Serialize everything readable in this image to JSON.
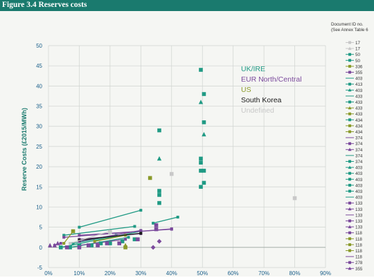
{
  "page": {
    "figure_title": "Figure 3.4 Reserves costs"
  },
  "colors": {
    "header_bg": "#1a7a6e",
    "uk_ire": "#1f9a84",
    "eur": "#7b4a9c",
    "us": "#8a9a2a",
    "south_korea": "#1a1a1a",
    "undefined": "#c8c8c8"
  },
  "chart_data": {
    "type": "scatter",
    "title": "",
    "xlabel": "",
    "ylabel": "Reserve Costs (£2015/MWh)",
    "xlim": [
      0,
      0.9
    ],
    "ylim": [
      -5,
      50
    ],
    "x_ticks": [
      "0%",
      "10%",
      "20%",
      "30%",
      "40%",
      "50%",
      "60%",
      "70%",
      "80%",
      "90%"
    ],
    "y_ticks": [
      "-5",
      "0",
      "5",
      "10",
      "15",
      "20",
      "25",
      "30",
      "35",
      "40",
      "45",
      "50"
    ],
    "grid": true,
    "category_labels": [
      {
        "name": "UK/IRE",
        "color": "#1f9a84"
      },
      {
        "name": "EUR North/Central",
        "color": "#7b4a9c"
      },
      {
        "name": "US",
        "color": "#8a9a2a"
      },
      {
        "name": "South Korea",
        "color": "#1a1a1a"
      },
      {
        "name": "Undefined",
        "color": "#c8c8c8"
      }
    ],
    "legend_title": "Document ID no.\n(See Annex Table 6",
    "legend_ids": [
      "17",
      "17",
      "50",
      "50",
      "336",
      "355",
      "403",
      "413",
      "403",
      "433",
      "433",
      "433",
      "433",
      "434",
      "434",
      "434",
      "374",
      "374",
      "374",
      "374",
      "374",
      "403",
      "403",
      "403",
      "403",
      "403",
      "403",
      "133",
      "133",
      "133",
      "133",
      "133",
      "118",
      "118",
      "118",
      "118",
      "118",
      "278",
      "355"
    ],
    "series": [
      {
        "group": "uk",
        "style": "line",
        "points": [
          [
            0.1,
            5
          ],
          [
            0.3,
            9.2
          ]
        ]
      },
      {
        "group": "uk",
        "style": "line",
        "points": [
          [
            0.05,
            3
          ],
          [
            0.28,
            5.2
          ]
        ]
      },
      {
        "group": "uk",
        "style": "line",
        "points": [
          [
            0.34,
            6
          ],
          [
            0.42,
            7.5
          ]
        ]
      },
      {
        "group": "uk",
        "style": "line",
        "points": [
          [
            0.04,
            0
          ],
          [
            0.3,
            4
          ]
        ]
      },
      {
        "group": "uk",
        "style": "line",
        "points": [
          [
            0.08,
            1
          ],
          [
            0.22,
            3
          ]
        ]
      },
      {
        "group": "uk",
        "style": "line",
        "points": [
          [
            0.07,
            0
          ],
          [
            0.26,
            2.5
          ]
        ]
      },
      {
        "group": "eur",
        "style": "line",
        "points": [
          [
            0.05,
            2.5
          ],
          [
            0.4,
            4.6
          ]
        ]
      },
      {
        "group": "eur",
        "style": "line",
        "points": [
          [
            0.1,
            2
          ],
          [
            0.3,
            3.4
          ]
        ]
      },
      {
        "group": "eur",
        "style": "line",
        "points": [
          [
            0.1,
            3
          ],
          [
            0.4,
            4.5
          ]
        ]
      },
      {
        "group": "eur",
        "style": "line",
        "points": [
          [
            0.1,
            1.5
          ],
          [
            0.3,
            4.2
          ]
        ]
      },
      {
        "group": "eur",
        "style": "line",
        "points": [
          [
            0.02,
            0.5
          ],
          [
            0.04,
            1
          ]
        ]
      },
      {
        "group": "eur",
        "style": "line",
        "points": [
          [
            0.1,
            0.5
          ],
          [
            0.25,
            2
          ]
        ]
      },
      {
        "group": "us",
        "style": "line",
        "points": [
          [
            0.05,
            1
          ],
          [
            0.08,
            4
          ]
        ]
      },
      {
        "group": "us",
        "style": "line",
        "points": [
          [
            0.15,
            1.5
          ],
          [
            0.25,
            3
          ]
        ]
      },
      {
        "group": "sk",
        "style": "line",
        "points": [
          [
            0.1,
            1.8
          ],
          [
            0.3,
            3.5
          ]
        ]
      },
      {
        "group": "und",
        "style": "line",
        "points": [
          [
            0.07,
            1
          ],
          [
            0.2,
            4
          ]
        ]
      },
      {
        "group": "uk",
        "style": "square",
        "points": [
          [
            0.36,
            29
          ],
          [
            0.36,
            14
          ],
          [
            0.36,
            13
          ],
          [
            0.36,
            11
          ],
          [
            0.495,
            44
          ],
          [
            0.505,
            38
          ],
          [
            0.505,
            31
          ],
          [
            0.495,
            22
          ],
          [
            0.495,
            21
          ],
          [
            0.495,
            19
          ],
          [
            0.505,
            19
          ],
          [
            0.495,
            15
          ],
          [
            0.505,
            16
          ]
        ]
      },
      {
        "group": "uk",
        "style": "triangle",
        "points": [
          [
            0.36,
            22
          ],
          [
            0.495,
            36
          ],
          [
            0.505,
            28
          ]
        ]
      },
      {
        "group": "uk",
        "style": "square",
        "points": [
          [
            0.04,
            0
          ],
          [
            0.07,
            0
          ],
          [
            0.1,
            0.5
          ],
          [
            0.14,
            0.5
          ],
          [
            0.17,
            1
          ],
          [
            0.2,
            1
          ],
          [
            0.24,
            1.5
          ],
          [
            0.28,
            2
          ]
        ]
      },
      {
        "group": "us",
        "style": "square",
        "points": [
          [
            0.33,
            17.2
          ],
          [
            0.08,
            4
          ],
          [
            0.25,
            0
          ]
        ]
      },
      {
        "group": "us",
        "style": "triangle",
        "points": [
          [
            0.25,
            0.5
          ]
        ]
      },
      {
        "group": "eur",
        "style": "square",
        "points": [
          [
            0.06,
            0
          ],
          [
            0.1,
            0
          ],
          [
            0.13,
            0.5
          ],
          [
            0.16,
            0.5
          ],
          [
            0.19,
            1
          ],
          [
            0.23,
            1
          ],
          [
            0.29,
            2
          ],
          [
            0.35,
            5.5
          ],
          [
            0.35,
            4.5
          ]
        ]
      },
      {
        "group": "eur",
        "style": "triangle",
        "points": [
          [
            0.005,
            0.5
          ],
          [
            0.02,
            0.5
          ],
          [
            0.03,
            1
          ]
        ]
      },
      {
        "group": "eur",
        "style": "diamond",
        "points": [
          [
            0.36,
            1.5
          ],
          [
            0.34,
            0
          ]
        ]
      },
      {
        "group": "und",
        "style": "square",
        "points": [
          [
            0.8,
            12.2
          ],
          [
            0.4,
            18.2
          ],
          [
            0.2,
            3.8
          ]
        ]
      }
    ]
  }
}
